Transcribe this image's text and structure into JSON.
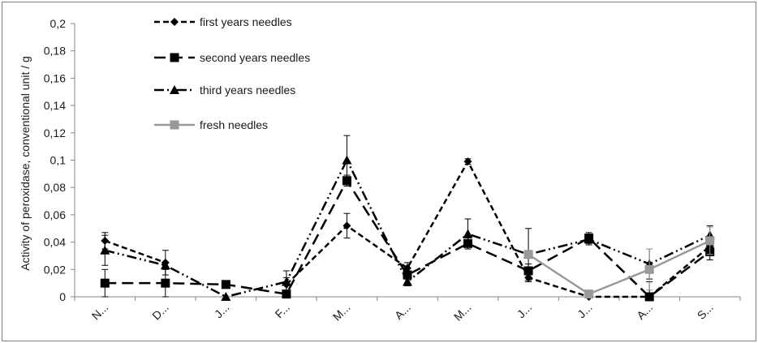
{
  "chart_data": {
    "type": "line",
    "title": "",
    "xlabel": "",
    "ylabel": "Activity of peroxidase, conventional unit / g",
    "ylim": [
      0,
      0.2
    ],
    "yticks": [
      "0",
      "0,02",
      "0,04",
      "0,06",
      "0,08",
      "0,1",
      "0,12",
      "0,14",
      "0,16",
      "0,18",
      "0,2"
    ],
    "categories": [
      "N...",
      "D...",
      "J...",
      "F...",
      "M...",
      "A...",
      "M...",
      "J...",
      "J...",
      "A...",
      "S..."
    ],
    "legend_position": "top-left",
    "series": [
      {
        "name": "first years needles",
        "color": "#000000",
        "dash": "dashed",
        "marker": "diamond",
        "values": [
          0.041,
          0.025,
          null,
          0.009,
          0.052,
          0.021,
          0.099,
          0.014,
          0.0,
          0.0,
          0.037
        ],
        "errors": [
          0.006,
          0.009,
          null,
          0.005,
          0.009,
          0.004,
          0.002,
          0.003,
          0.001,
          0.001,
          0.006
        ]
      },
      {
        "name": "second years needles",
        "color": "#000000",
        "dash": "long-dash",
        "marker": "square",
        "values": [
          0.01,
          0.01,
          0.009,
          0.002,
          0.085,
          0.016,
          0.039,
          0.019,
          0.043,
          0.0,
          0.033
        ],
        "errors": [
          0.01,
          0.01,
          null,
          null,
          0.004,
          0.003,
          0.004,
          0.005,
          0.004,
          0.011,
          0.006
        ]
      },
      {
        "name": "third years needles",
        "color": "#000000",
        "dash": "dash-dot-dot",
        "marker": "triangle",
        "values": [
          0.034,
          0.023,
          0.0,
          0.011,
          0.1,
          0.011,
          0.046,
          0.031,
          0.042,
          0.024,
          0.045
        ],
        "errors": [
          0.011,
          null,
          null,
          0.008,
          0.018,
          0.003,
          0.011,
          0.019,
          0.004,
          0.011,
          0.007
        ]
      },
      {
        "name": "fresh needles",
        "color": "#999999",
        "dash": "solid",
        "marker": "square",
        "values": [
          null,
          null,
          null,
          null,
          null,
          null,
          null,
          0.031,
          0.002,
          0.02,
          0.041
        ],
        "errors": [
          null,
          null,
          null,
          null,
          null,
          null,
          null,
          null,
          null,
          0.015,
          0.01
        ]
      }
    ]
  }
}
